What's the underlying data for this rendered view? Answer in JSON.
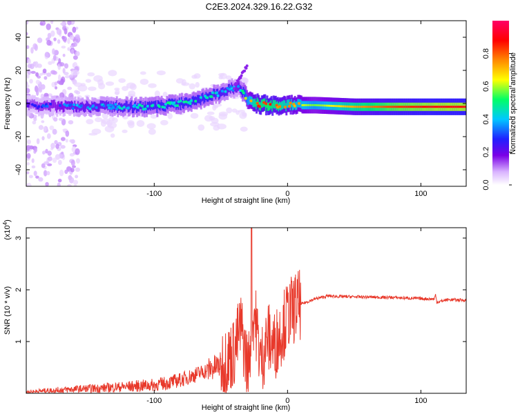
{
  "title": "C2E3.2024.329.16.22.G32",
  "colors": {
    "snr_line": "#e8392b",
    "spectrogram_background": "#ffffff"
  },
  "chart_data": [
    {
      "type": "heatmap",
      "name": "spectrogram",
      "xlabel": "Height of straight line (km)",
      "ylabel": "Frequency (Hz)",
      "xlim": [
        -196,
        134
      ],
      "ylim": [
        -50,
        50
      ],
      "xticks": [
        -100,
        0,
        100
      ],
      "yticks": [
        -40,
        -20,
        0,
        20,
        40
      ],
      "colorbar": {
        "label": "Normalized spectral amplitude",
        "range": [
          0,
          1
        ],
        "ticks": [
          "0.0",
          "0.2",
          "0.4",
          "0.6",
          "0.8"
        ],
        "colormap": [
          "#ffffff",
          "#d9b3ff",
          "#7a00e6",
          "#2020ff",
          "#00c8ff",
          "#00ff66",
          "#ffff00",
          "#ff8800",
          "#ff0000",
          "#ff0066"
        ]
      },
      "ridge": {
        "description_points_x": [
          -196,
          -160,
          -130,
          -100,
          -80,
          -60,
          -45,
          -38,
          -33,
          -30,
          -25,
          -15,
          0,
          20,
          50,
          80,
          110,
          134
        ],
        "center_frequency_hz": [
          -1,
          -2,
          -2,
          -2,
          0,
          4,
          8,
          10,
          6,
          2,
          0,
          -1,
          -1,
          -1,
          -2,
          -2,
          -2,
          -2
        ],
        "amplitude": [
          0.25,
          0.35,
          0.4,
          0.45,
          0.45,
          0.45,
          0.4,
          0.35,
          0.5,
          0.6,
          0.75,
          0.8,
          0.7,
          0.6,
          0.75,
          0.85,
          0.9,
          0.9
        ]
      }
    },
    {
      "type": "line",
      "name": "snr",
      "xlabel": "Height of straight line (km)",
      "ylabel": "SNR (10 * v/v)",
      "y_multiplier_label": "(x10",
      "y_multiplier_exponent": "4",
      "xlim": [
        -196,
        134
      ],
      "ylim": [
        0,
        3.2
      ],
      "xticks": [
        -100,
        0,
        100
      ],
      "yticks": [
        1,
        2,
        3
      ],
      "x": [
        -196,
        -180,
        -160,
        -140,
        -120,
        -100,
        -90,
        -80,
        -70,
        -60,
        -50,
        -45,
        -40,
        -35,
        -30,
        -25,
        -20,
        -15,
        -10,
        -5,
        0,
        5,
        10,
        20,
        30,
        40,
        60,
        80,
        100,
        110,
        111,
        112,
        120,
        134
      ],
      "y": [
        0.02,
        0.05,
        0.08,
        0.1,
        0.13,
        0.16,
        0.2,
        0.26,
        0.35,
        0.45,
        0.55,
        0.65,
        0.8,
        1.3,
        0.5,
        1.6,
        0.6,
        1.1,
        0.9,
        1.2,
        1.5,
        1.65,
        1.72,
        1.82,
        1.88,
        1.87,
        1.86,
        1.85,
        1.83,
        1.82,
        1.9,
        1.76,
        1.81,
        1.8
      ],
      "spike": {
        "x": -27,
        "y": 3.2
      }
    }
  ]
}
